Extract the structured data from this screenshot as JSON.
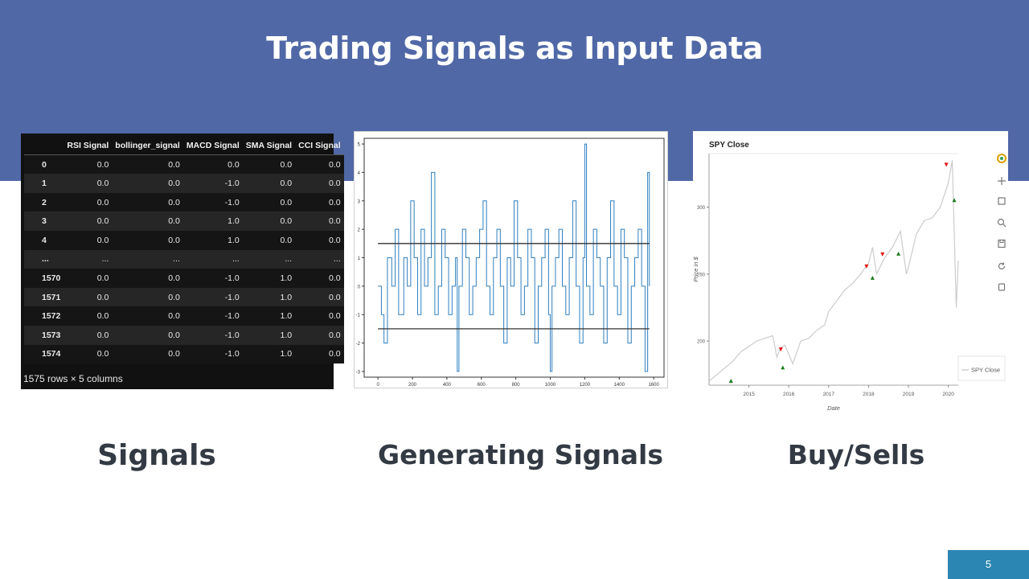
{
  "slide": {
    "title": "Trading Signals as Input Data",
    "page_number": "5",
    "captions": {
      "signals": "Signals",
      "generating": "Generating Signals",
      "buysells": "Buy/Sells"
    },
    "colors": {
      "header": "#5068a6",
      "caption": "#333a44",
      "page_box": "#2c86b3"
    }
  },
  "table": {
    "columns": [
      "RSI Signal",
      "bollinger_signal",
      "MACD Signal",
      "SMA Signal",
      "CCI Signal"
    ],
    "rows": [
      {
        "index": "0",
        "cells": [
          "0.0",
          "0.0",
          "0.0",
          "0.0",
          "0.0"
        ]
      },
      {
        "index": "1",
        "cells": [
          "0.0",
          "0.0",
          "-1.0",
          "0.0",
          "0.0"
        ]
      },
      {
        "index": "2",
        "cells": [
          "0.0",
          "0.0",
          "-1.0",
          "0.0",
          "0.0"
        ]
      },
      {
        "index": "3",
        "cells": [
          "0.0",
          "0.0",
          "1.0",
          "0.0",
          "0.0"
        ]
      },
      {
        "index": "4",
        "cells": [
          "0.0",
          "0.0",
          "1.0",
          "0.0",
          "0.0"
        ]
      },
      {
        "index": "...",
        "cells": [
          "...",
          "...",
          "...",
          "...",
          "..."
        ]
      },
      {
        "index": "1570",
        "cells": [
          "0.0",
          "0.0",
          "-1.0",
          "1.0",
          "0.0"
        ]
      },
      {
        "index": "1571",
        "cells": [
          "0.0",
          "0.0",
          "-1.0",
          "1.0",
          "0.0"
        ]
      },
      {
        "index": "1572",
        "cells": [
          "0.0",
          "0.0",
          "-1.0",
          "1.0",
          "0.0"
        ]
      },
      {
        "index": "1573",
        "cells": [
          "0.0",
          "0.0",
          "-1.0",
          "1.0",
          "0.0"
        ]
      },
      {
        "index": "1574",
        "cells": [
          "0.0",
          "0.0",
          "-1.0",
          "1.0",
          "0.0"
        ]
      }
    ],
    "shape": "1575 rows × 5 columns"
  },
  "chart_data": [
    {
      "type": "line",
      "title": "",
      "xlabel": "",
      "ylabel": "",
      "xlim": [
        -80,
        1660
      ],
      "ylim": [
        -3.2,
        5.2
      ],
      "xticks": [
        0,
        200,
        400,
        600,
        800,
        1000,
        1200,
        1400,
        1600
      ],
      "yticks": [
        -3,
        -2,
        -1,
        0,
        1,
        2,
        3,
        4,
        5
      ],
      "line_color": "#2f7fc0",
      "threshold_color": "#333333",
      "thresholds": [
        1.5,
        -1.5
      ],
      "threshold_x": [
        0,
        1575
      ],
      "series": [
        {
          "x": [
            0,
            20,
            35,
            55,
            80,
            100,
            120,
            150,
            170,
            190,
            210,
            230,
            250,
            270,
            290,
            310,
            330,
            350,
            370,
            390,
            410,
            430,
            450,
            460,
            470,
            490,
            510,
            530,
            550,
            570,
            590,
            610,
            630,
            650,
            670,
            690,
            710,
            730,
            750,
            770,
            790,
            810,
            830,
            850,
            870,
            890,
            910,
            930,
            950,
            970,
            990,
            1000,
            1010,
            1030,
            1050,
            1070,
            1090,
            1110,
            1130,
            1150,
            1170,
            1190,
            1200,
            1210,
            1230,
            1250,
            1270,
            1290,
            1310,
            1330,
            1350,
            1370,
            1390,
            1410,
            1430,
            1450,
            1470,
            1490,
            1510,
            1530,
            1550,
            1565,
            1575
          ],
          "y": [
            0,
            -1,
            -2,
            1,
            0,
            2,
            -1,
            1,
            0,
            3,
            1,
            -1,
            2,
            0,
            1,
            4,
            -1,
            0,
            2,
            1,
            -1,
            0,
            1,
            -3,
            0,
            2,
            1,
            -1,
            0,
            1,
            2,
            3,
            0,
            -1,
            1,
            2,
            0,
            -2,
            1,
            0,
            3,
            1,
            -1,
            0,
            2,
            1,
            -2,
            0,
            1,
            2,
            -1,
            -3,
            0,
            1,
            2,
            0,
            -1,
            1,
            3,
            0,
            -2,
            1,
            5,
            0,
            -1,
            2,
            1,
            0,
            -2,
            1,
            3,
            0,
            -1,
            2,
            1,
            -2,
            0,
            1,
            2,
            0,
            -3,
            4,
            0
          ]
        }
      ]
    },
    {
      "type": "line",
      "title": "SPY Close",
      "xlabel": "Date",
      "ylabel": "Price in $",
      "xlim": [
        2014.0,
        2020.25
      ],
      "ylim": [
        167,
        340
      ],
      "xticks": [
        "2015",
        "2016",
        "2017",
        "2018",
        "2019",
        "2020"
      ],
      "yticks": [
        200,
        250,
        300
      ],
      "line_color": "#cccccc",
      "legend": {
        "label": "SPY Close",
        "placement": "bottom-right"
      },
      "series": [
        {
          "name": "SPY Close",
          "x": [
            2014.0,
            2014.2,
            2014.4,
            2014.6,
            2014.8,
            2015.0,
            2015.2,
            2015.4,
            2015.6,
            2015.7,
            2015.8,
            2015.9,
            2016.1,
            2016.3,
            2016.5,
            2016.7,
            2016.9,
            2017.0,
            2017.2,
            2017.4,
            2017.6,
            2017.8,
            2018.0,
            2018.1,
            2018.2,
            2018.4,
            2018.6,
            2018.8,
            2018.95,
            2019.0,
            2019.2,
            2019.4,
            2019.6,
            2019.8,
            2020.0,
            2020.1,
            2020.2,
            2020.25
          ],
          "y": [
            170,
            175,
            180,
            185,
            192,
            196,
            200,
            202,
            204,
            188,
            195,
            197,
            183,
            200,
            202,
            208,
            212,
            222,
            230,
            238,
            243,
            250,
            258,
            270,
            250,
            262,
            270,
            282,
            250,
            255,
            280,
            290,
            292,
            300,
            318,
            335,
            225,
            260
          ]
        }
      ],
      "buy_signals": {
        "x": [
          2014.55,
          2015.85,
          2018.1,
          2018.75,
          2020.15
        ],
        "y": [
          170,
          180,
          247,
          265,
          305
        ]
      },
      "sell_signals": {
        "x": [
          2015.8,
          2017.95,
          2018.35,
          2019.95
        ],
        "y": [
          194,
          256,
          265,
          332
        ]
      }
    }
  ]
}
